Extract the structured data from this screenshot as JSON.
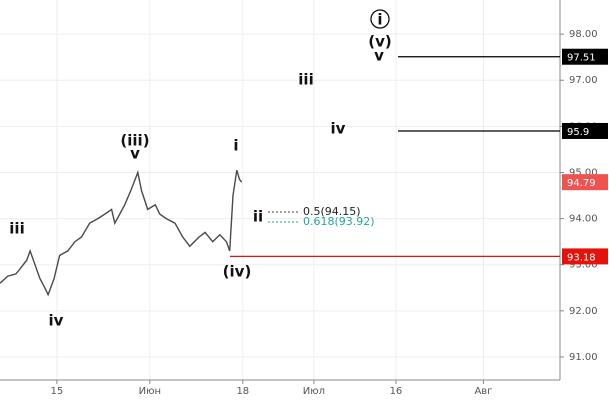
{
  "chart_data": {
    "type": "line",
    "x": [
      -10.4,
      -9,
      -7.5,
      -6.8,
      -5.5,
      -4.9,
      -4,
      -3.1,
      -2.2,
      -1.6,
      -0.5,
      0.5,
      2,
      3.3,
      4.5,
      6,
      7.5,
      8.8,
      10,
      10.6,
      11.5,
      12.4,
      13.5,
      14.8,
      15.5,
      16.6,
      18,
      18.8,
      20,
      21.6,
      23,
      24.3,
      26,
      27.1,
      28.5,
      29.8,
      31,
      31.6,
      32.2,
      32.9,
      33.4,
      33.8
    ],
    "series": [
      {
        "color": "#4a4a4a",
        "values": [
          92.6,
          92.75,
          92.8,
          92.9,
          93.1,
          93.3,
          93.0,
          92.7,
          92.5,
          92.35,
          92.7,
          93.2,
          93.3,
          93.5,
          93.6,
          93.9,
          94.0,
          94.1,
          94.2,
          93.9,
          94.1,
          94.3,
          94.6,
          95.0,
          94.6,
          94.2,
          94.3,
          94.1,
          94.0,
          93.9,
          93.6,
          93.4,
          93.6,
          93.7,
          93.5,
          93.65,
          93.5,
          93.3,
          94.5,
          95.05,
          94.85,
          94.79
        ]
      }
    ],
    "xlim": [
      -10.4,
      92
    ],
    "xticks": [
      {
        "value": 0,
        "label": "15"
      },
      {
        "value": 17,
        "label": "Июн"
      },
      {
        "value": 34,
        "label": "18"
      },
      {
        "value": 47,
        "label": "Июл"
      },
      {
        "value": 62,
        "label": "16"
      },
      {
        "value": 78,
        "label": "Авг"
      }
    ],
    "ylim": [
      90.5,
      98.74
    ],
    "yticks": [
      {
        "value": 91,
        "label": "91.00"
      },
      {
        "value": 92,
        "label": "92.00"
      },
      {
        "value": 93,
        "label": "93.00"
      },
      {
        "value": 94,
        "label": "94.00"
      },
      {
        "value": 95,
        "label": "95.00"
      },
      {
        "value": 96,
        "label": "96.00"
      },
      {
        "value": 97,
        "label": "97.00"
      },
      {
        "value": 98,
        "label": "98.00"
      }
    ],
    "grid": true,
    "levels": [
      {
        "value": 97.51,
        "color": "#000000",
        "line": true
      },
      {
        "value": 95.9,
        "color": "#000000",
        "line": true
      },
      {
        "value": 94.79,
        "color": "#ef5350",
        "line": false
      },
      {
        "value": 93.18,
        "color": "#e3120b",
        "line": true
      }
    ],
    "annotations": [
      "i",
      "(v)",
      "v",
      "iii",
      "iv",
      "i",
      "(iii)",
      "v",
      "ii",
      "(iv)",
      "iii",
      "iv"
    ],
    "fib_labels": [
      {
        "text": "0.5(94.15)",
        "color": "#222222"
      },
      {
        "text": "0.618(93.92)",
        "color": "#26a69a"
      }
    ]
  }
}
